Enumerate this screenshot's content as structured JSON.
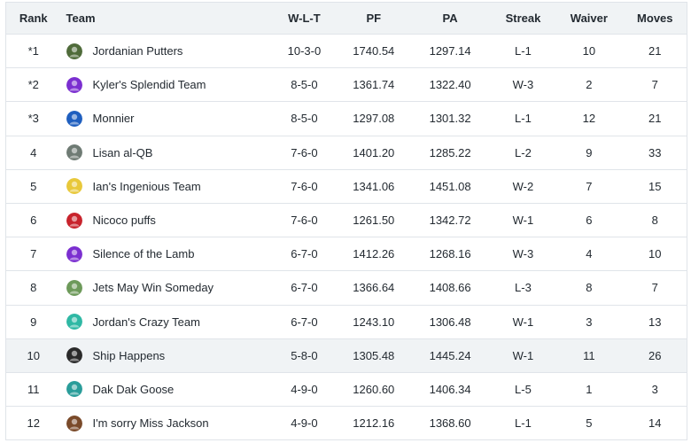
{
  "columns": {
    "rank": "Rank",
    "team": "Team",
    "wlt": "W-L-T",
    "pf": "PF",
    "pa": "PA",
    "streak": "Streak",
    "waiver": "Waiver",
    "moves": "Moves"
  },
  "rows": [
    {
      "rank": "*1",
      "team": "Jordanian Putters",
      "wlt": "10-3-0",
      "pf": "1740.54",
      "pa": "1297.14",
      "streak": "L-1",
      "waiver": "10",
      "moves": "21",
      "avatar_icon": "putter-avatar-icon",
      "avatar_color": "#4f6b3a"
    },
    {
      "rank": "*2",
      "team": "Kyler's Splendid Team",
      "wlt": "8-5-0",
      "pf": "1361.74",
      "pa": "1322.40",
      "streak": "W-3",
      "waiver": "2",
      "moves": "7",
      "avatar_icon": "purple-default-avatar-icon",
      "avatar_color": "#7b2fd0"
    },
    {
      "rank": "*3",
      "team": "Monnier",
      "wlt": "8-5-0",
      "pf": "1297.08",
      "pa": "1301.32",
      "streak": "L-1",
      "waiver": "12",
      "moves": "21",
      "avatar_icon": "blue-player-avatar-icon",
      "avatar_color": "#1f5fbf"
    },
    {
      "rank": "4",
      "team": "Lisan al-QB",
      "wlt": "7-6-0",
      "pf": "1401.20",
      "pa": "1285.22",
      "streak": "L-2",
      "waiver": "9",
      "moves": "33",
      "avatar_icon": "face-avatar-icon",
      "avatar_color": "#6f7b74"
    },
    {
      "rank": "5",
      "team": "Ian's Ingenious Team",
      "wlt": "7-6-0",
      "pf": "1341.06",
      "pa": "1451.08",
      "streak": "W-2",
      "waiver": "7",
      "moves": "15",
      "avatar_icon": "yellow-cartoon-avatar-icon",
      "avatar_color": "#e8c83a"
    },
    {
      "rank": "6",
      "team": "Nicoco puffs",
      "wlt": "7-6-0",
      "pf": "1261.50",
      "pa": "1342.72",
      "streak": "W-1",
      "waiver": "6",
      "moves": "8",
      "avatar_icon": "red-black-avatar-icon",
      "avatar_color": "#c8232c"
    },
    {
      "rank": "7",
      "team": "Silence of the Lamb",
      "wlt": "6-7-0",
      "pf": "1412.26",
      "pa": "1268.16",
      "streak": "W-3",
      "waiver": "4",
      "moves": "10",
      "avatar_icon": "purple-default-avatar-icon",
      "avatar_color": "#7b2fd0"
    },
    {
      "rank": "8",
      "team": "Jets May Win Someday",
      "wlt": "6-7-0",
      "pf": "1366.64",
      "pa": "1408.66",
      "streak": "L-3",
      "waiver": "8",
      "moves": "7",
      "avatar_icon": "green-cartoon-avatar-icon",
      "avatar_color": "#6d9a5a"
    },
    {
      "rank": "9",
      "team": "Jordan's Crazy Team",
      "wlt": "6-7-0",
      "pf": "1243.10",
      "pa": "1306.48",
      "streak": "W-1",
      "waiver": "3",
      "moves": "13",
      "avatar_icon": "pink-teal-avatar-icon",
      "avatar_color": "#2fb8a4"
    },
    {
      "rank": "10",
      "team": "Ship Happens",
      "wlt": "5-8-0",
      "pf": "1305.48",
      "pa": "1445.24",
      "streak": "W-1",
      "waiver": "11",
      "moves": "26",
      "avatar_icon": "dark-figure-avatar-icon",
      "avatar_color": "#2a2a2a"
    },
    {
      "rank": "11",
      "team": "Dak Dak Goose",
      "wlt": "4-9-0",
      "pf": "1260.60",
      "pa": "1406.34",
      "streak": "L-5",
      "waiver": "1",
      "moves": "3",
      "avatar_icon": "teal-red-avatar-icon",
      "avatar_color": "#2a9d9a"
    },
    {
      "rank": "12",
      "team": "I'm sorry Miss Jackson",
      "wlt": "4-9-0",
      "pf": "1212.16",
      "pa": "1368.60",
      "streak": "L-1",
      "waiver": "5",
      "moves": "14",
      "avatar_icon": "brown-helmet-avatar-icon",
      "avatar_color": "#7a4a2a"
    }
  ],
  "highlighted_row": 9
}
